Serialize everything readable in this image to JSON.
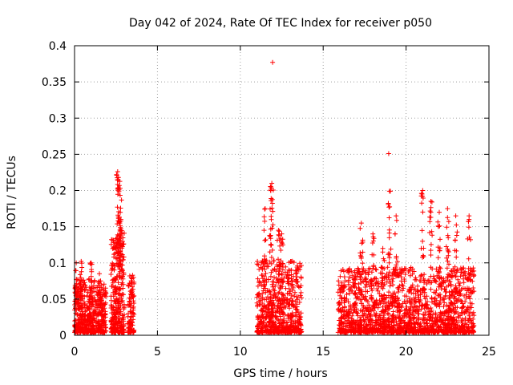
{
  "chart_data": {
    "type": "scatter",
    "title": "Day 042 of 2024, Rate Of TEC Index for receiver p050",
    "xlabel": "GPS time / hours",
    "ylabel": "ROTI / TECUs",
    "xlim": [
      0,
      25
    ],
    "ylim": [
      0,
      0.4
    ],
    "x_ticks": [
      0,
      5,
      10,
      15,
      20,
      25
    ],
    "y_ticks": [
      0,
      0.05,
      0.1,
      0.15,
      0.2,
      0.25,
      0.3,
      0.35,
      0.4
    ],
    "x_tick_labels": [
      "0",
      "5",
      "10",
      "15",
      "20",
      "25"
    ],
    "y_tick_labels": [
      "0",
      "0.05",
      "0.1",
      "0.15",
      "0.2",
      "0.25",
      "0.3",
      "0.35",
      "0.4"
    ],
    "grid": true,
    "marker": "+",
    "color": "#ff0000",
    "clusters": [
      {
        "x_range": [
          0.0,
          1.9
        ],
        "count": 520,
        "typical_max": 0.075,
        "peaks": [
          [
            0.1,
            0.1
          ],
          [
            0.4,
            0.102
          ],
          [
            1.0,
            0.1
          ],
          [
            1.5,
            0.085
          ]
        ]
      },
      {
        "x_range": [
          2.2,
          3.0
        ],
        "count": 320,
        "typical_max": 0.14,
        "peaks": [
          [
            2.6,
            0.226
          ],
          [
            2.65,
            0.218
          ],
          [
            2.7,
            0.207
          ],
          [
            2.75,
            0.203
          ],
          [
            2.8,
            0.16
          ]
        ]
      },
      {
        "x_range": [
          3.2,
          3.6
        ],
        "count": 90,
        "typical_max": 0.08,
        "peaks": [
          [
            3.5,
            0.083
          ]
        ]
      },
      {
        "x_range": [
          11.0,
          13.7
        ],
        "count": 650,
        "typical_max": 0.1,
        "peaks": [
          [
            11.5,
            0.175
          ],
          [
            11.9,
            0.21
          ],
          [
            11.85,
            0.205
          ],
          [
            12.3,
            0.145
          ],
          [
            12.5,
            0.14
          ]
        ]
      },
      {
        "x_range": [
          15.9,
          24.1
        ],
        "count": 1700,
        "typical_max": 0.09,
        "peaks": [
          [
            17.3,
            0.155
          ],
          [
            18.0,
            0.14
          ],
          [
            18.6,
            0.12
          ],
          [
            19.0,
            0.199
          ],
          [
            19.4,
            0.165
          ],
          [
            21.0,
            0.2
          ],
          [
            21.5,
            0.185
          ],
          [
            22.0,
            0.17
          ],
          [
            22.5,
            0.175
          ],
          [
            23.0,
            0.165
          ],
          [
            23.8,
            0.165
          ]
        ]
      }
    ],
    "outliers": [
      {
        "x": 11.95,
        "y": 0.377
      },
      {
        "x": 18.95,
        "y": 0.251
      },
      {
        "x": 19.05,
        "y": 0.199
      }
    ]
  }
}
